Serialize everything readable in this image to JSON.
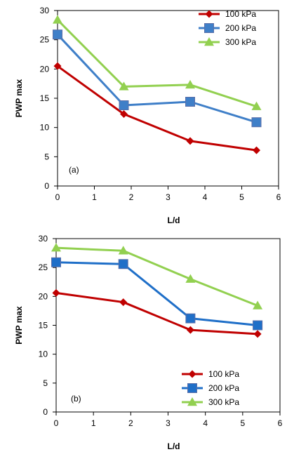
{
  "chart_data": [
    {
      "type": "line",
      "panel_label": "(a)",
      "xlabel": "L/d",
      "ylabel": "PWP max",
      "xlim": [
        0,
        6
      ],
      "ylim": [
        0,
        30
      ],
      "xticks": [
        "0",
        "1",
        "2",
        "3",
        "4",
        "5",
        "6"
      ],
      "yticks": [
        "0",
        "5",
        "10",
        "15",
        "20",
        "25",
        "30"
      ],
      "legend_position": "top-right",
      "grid": false,
      "series": [
        {
          "name": "100 kPa",
          "color": "#c00000",
          "marker": "diamond",
          "x": [
            0,
            1.8,
            3.6,
            5.4
          ],
          "y": [
            20.5,
            12.3,
            7.7,
            6.1
          ]
        },
        {
          "name": "200 kPa",
          "color": "#3f7fc8",
          "marker": "square",
          "x": [
            0,
            1.8,
            3.6,
            5.4
          ],
          "y": [
            25.9,
            13.8,
            14.4,
            10.9
          ]
        },
        {
          "name": "300 kPa",
          "color": "#92d050",
          "marker": "triangle",
          "x": [
            0,
            1.8,
            3.6,
            5.4
          ],
          "y": [
            28.4,
            17.0,
            17.3,
            13.6
          ]
        }
      ]
    },
    {
      "type": "line",
      "panel_label": "(b)",
      "xlabel": "L/d",
      "ylabel": "PWP max",
      "xlim": [
        0,
        6
      ],
      "ylim": [
        0,
        30
      ],
      "xticks": [
        "0",
        "1",
        "2",
        "3",
        "4",
        "5",
        "6"
      ],
      "yticks": [
        "0",
        "5",
        "10",
        "15",
        "20",
        "25",
        "30"
      ],
      "legend_position": "bottom-right",
      "grid": false,
      "series": [
        {
          "name": "100 kPa",
          "color": "#c00000",
          "marker": "diamond",
          "x": [
            0,
            1.8,
            3.6,
            5.4
          ],
          "y": [
            20.6,
            19.0,
            14.2,
            13.5
          ]
        },
        {
          "name": "200 kPa",
          "color": "#1f6fc8",
          "marker": "square",
          "x": [
            0,
            1.8,
            3.6,
            5.4
          ],
          "y": [
            25.9,
            25.6,
            16.2,
            15.0
          ]
        },
        {
          "name": "300 kPa",
          "color": "#92d050",
          "marker": "triangle",
          "x": [
            0,
            1.8,
            3.6,
            5.4
          ],
          "y": [
            28.4,
            27.9,
            23.0,
            18.4
          ]
        }
      ]
    }
  ]
}
